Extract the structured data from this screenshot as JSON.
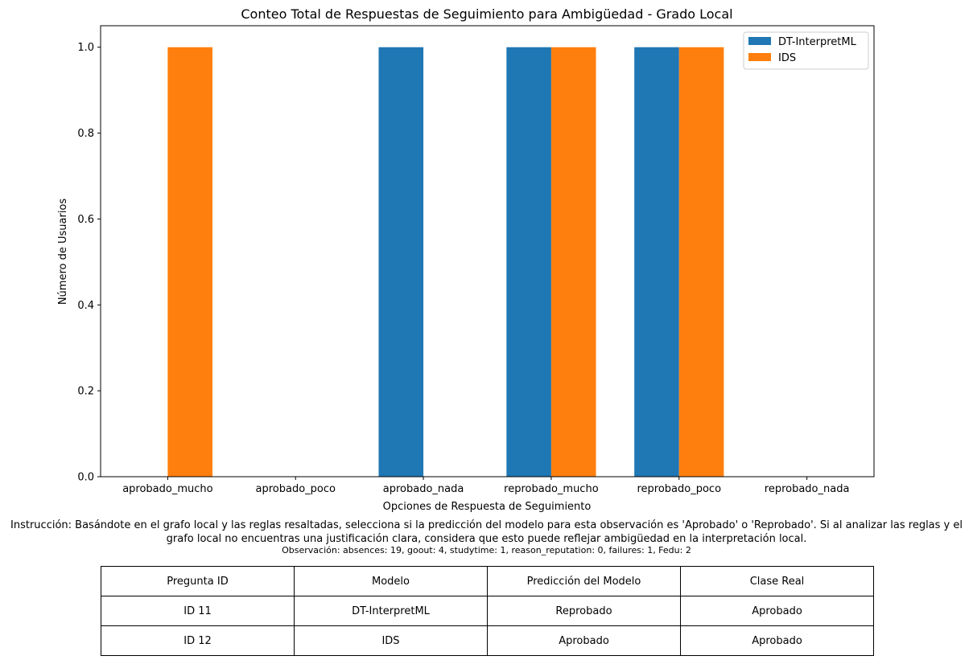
{
  "chart_data": {
    "type": "bar",
    "title": "Conteo Total de Respuestas de Seguimiento para Ambigüedad - Grado Local",
    "xlabel": "Opciones de Respuesta de Seguimiento",
    "ylabel": "Número de Usuarios",
    "categories": [
      "aprobado_mucho",
      "aprobado_poco",
      "aprobado_nada",
      "reprobado_mucho",
      "reprobado_poco",
      "reprobado_nada"
    ],
    "series": [
      {
        "name": "DT-InterpretML",
        "color": "#1f77b4",
        "values": [
          0,
          0,
          1,
          1,
          1,
          0
        ]
      },
      {
        "name": "IDS",
        "color": "#ff7f0e",
        "values": [
          1,
          0,
          0,
          1,
          1,
          0
        ]
      }
    ],
    "ylim": [
      0,
      1.05
    ],
    "yticks": [
      "0.0",
      "0.2",
      "0.4",
      "0.6",
      "0.8",
      "1.0"
    ],
    "legend": "top-right",
    "grid": false
  },
  "instruction": "Instrucción: Basándote en el grafo local y las reglas resaltadas, selecciona si la predicción del modelo para esta observación es 'Aprobado' o 'Reprobado'. Si al analizar las reglas y el grafo local no encuentras una justificación clara, considera que esto puede reflejar ambigüedad en la interpretación local.",
  "observation": "Observación: absences: 19, goout: 4, studytime: 1, reason_reputation: 0, failures: 1, Fedu: 2",
  "table": {
    "headers": [
      "Pregunta ID",
      "Modelo",
      "Predicción del Modelo",
      "Clase Real"
    ],
    "rows": [
      [
        "ID 11",
        "DT-InterpretML",
        "Reprobado",
        "Aprobado"
      ],
      [
        "ID 12",
        "IDS",
        "Aprobado",
        "Aprobado"
      ]
    ]
  }
}
